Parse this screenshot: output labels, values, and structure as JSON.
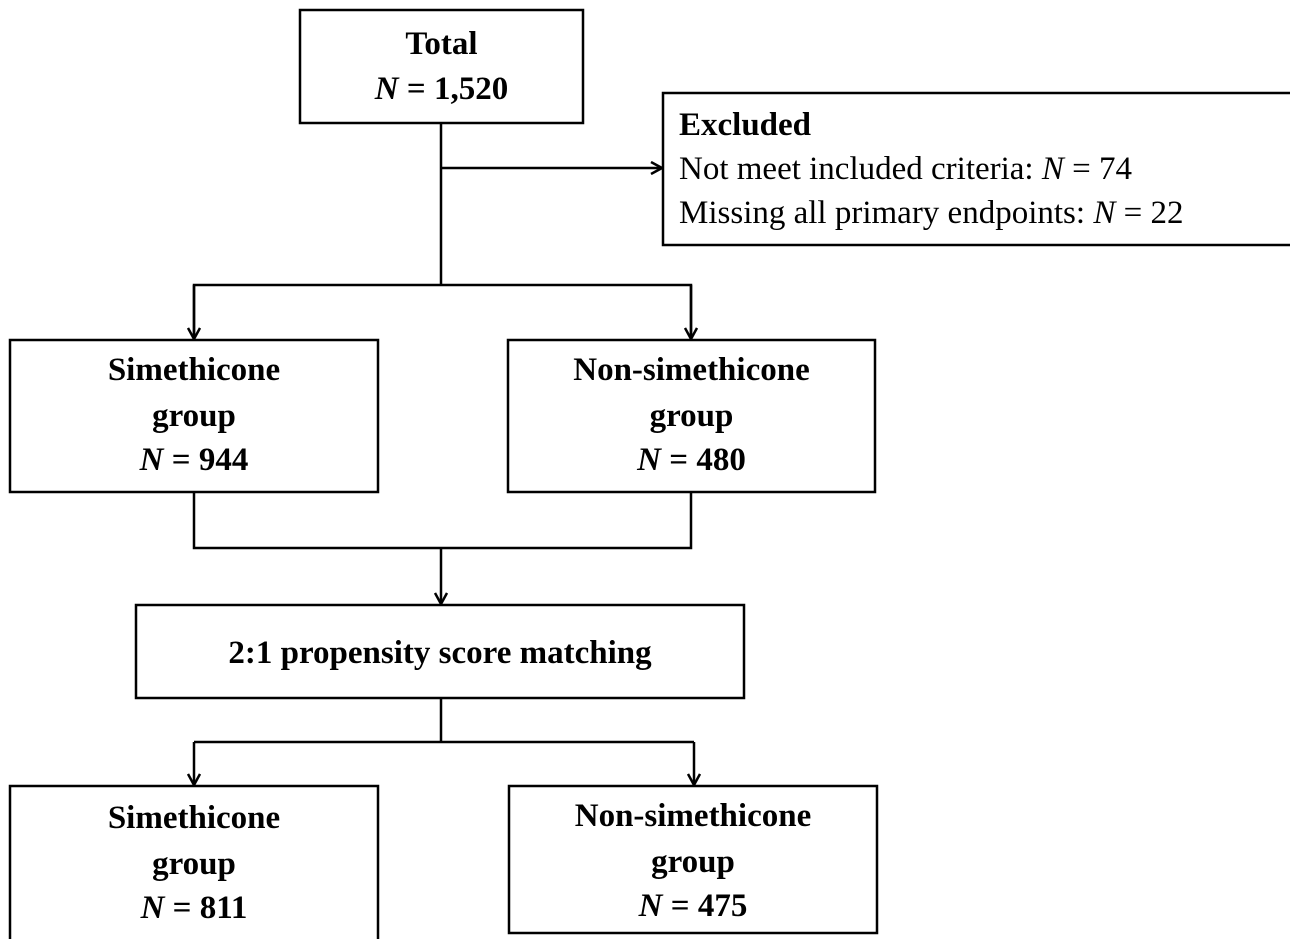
{
  "nodes": [
    {
      "lines": [
        [
          {
            "text": "Total",
            "bold": true
          }
        ],
        [
          {
            "text": "N",
            "bold": true,
            "italic": true
          },
          {
            "text": " = 1,520",
            "bold": true
          }
        ]
      ]
    },
    {
      "lines": [
        [
          {
            "text": "Excluded",
            "bold": true
          }
        ],
        [
          {
            "text": "Not meet included criteria: "
          },
          {
            "text": "N",
            "italic": true
          },
          {
            "text": " = 74"
          }
        ],
        [
          {
            "text": "Missing all primary endpoints: "
          },
          {
            "text": "N",
            "italic": true
          },
          {
            "text": " = 22"
          }
        ]
      ]
    },
    {
      "lines": [
        [
          {
            "text": "Simethicone",
            "bold": true
          }
        ],
        [
          {
            "text": "group",
            "bold": true
          }
        ],
        [
          {
            "text": "N",
            "bold": true,
            "italic": true
          },
          {
            "text": " = 944",
            "bold": true
          }
        ]
      ]
    },
    {
      "lines": [
        [
          {
            "text": "Non-simethicone",
            "bold": true
          }
        ],
        [
          {
            "text": "group",
            "bold": true
          }
        ],
        [
          {
            "text": "N",
            "bold": true,
            "italic": true
          },
          {
            "text": " = 480",
            "bold": true
          }
        ]
      ]
    },
    {
      "lines": [
        [
          {
            "text": "2:1 propensity score matching",
            "bold": true
          }
        ]
      ]
    },
    {
      "lines": [
        [
          {
            "text": "Simethicone",
            "bold": true
          }
        ],
        [
          {
            "text": "group",
            "bold": true
          }
        ],
        [
          {
            "text": "N",
            "bold": true,
            "italic": true
          },
          {
            "text": " = 811",
            "bold": true
          }
        ]
      ]
    },
    {
      "lines": [
        [
          {
            "text": "Non-simethicone",
            "bold": true
          }
        ],
        [
          {
            "text": "group",
            "bold": true
          }
        ],
        [
          {
            "text": "N",
            "bold": true,
            "italic": true
          },
          {
            "text": " = 475",
            "bold": true
          }
        ]
      ]
    }
  ]
}
